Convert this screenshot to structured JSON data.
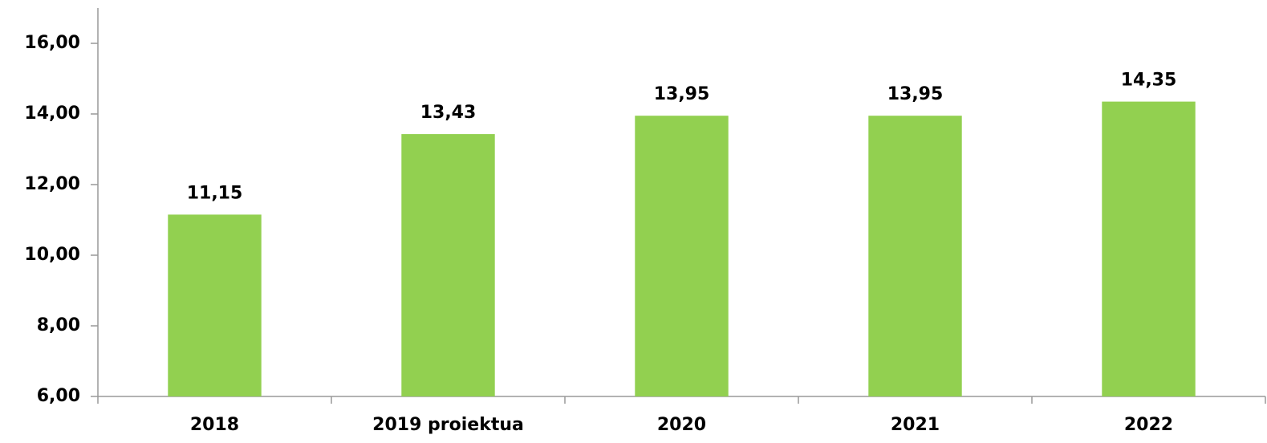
{
  "chart_data": {
    "type": "bar",
    "categories": [
      "2018",
      "2019 proiektua",
      "2020",
      "2021",
      "2022"
    ],
    "values": [
      11.15,
      13.43,
      13.95,
      13.95,
      14.35
    ],
    "value_labels": [
      "11,15",
      "13,43",
      "13,95",
      "13,95",
      "14,35"
    ],
    "color": "#92d050",
    "ylim": [
      6,
      17
    ],
    "yticks": [
      {
        "value": 6,
        "label": "6,00"
      },
      {
        "value": 8,
        "label": "8,00"
      },
      {
        "value": 10,
        "label": "10,00"
      },
      {
        "value": 12,
        "label": "12,00"
      },
      {
        "value": 14,
        "label": "14,00"
      },
      {
        "value": 16,
        "label": "16,00"
      }
    ],
    "grid": false
  }
}
